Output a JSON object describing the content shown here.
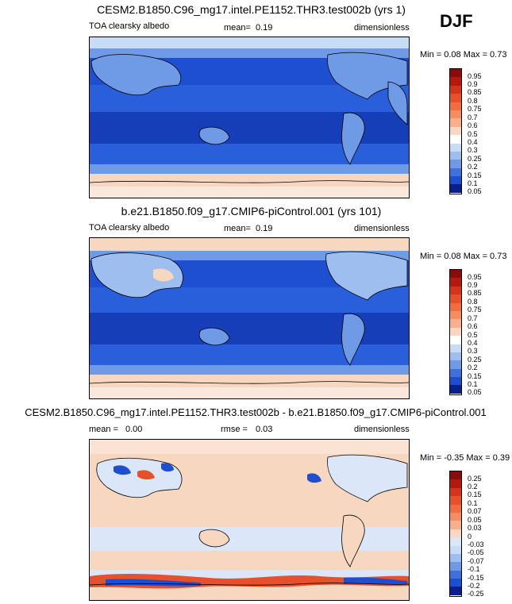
{
  "season": "DJF",
  "colors": {
    "blue_dark": "#0a1e8c",
    "blue_mid": "#1f4fd1",
    "blue_light": "#6f9ae6",
    "pale_blue": "#c9dcf5",
    "pale_orange": "#f7d7c0",
    "orange": "#ef8a5a",
    "red_dark": "#8b0a0a"
  },
  "panels": [
    {
      "title": "CESM2.B1850.C96_mg17.intel.PE1152.THR3.test002b (yrs 1)",
      "variable": "TOA clearsky albedo",
      "stat_label": "mean=",
      "stat_value": "0.19",
      "units": "dimensionless",
      "minmax": "Min =  0.08 Max =  0.73",
      "colorbar_levels": [
        "0.95",
        "0.9",
        "0.85",
        "0.8",
        "0.75",
        "0.7",
        "0.6",
        "0.5",
        "0.4",
        "0.3",
        "0.25",
        "0.2",
        "0.15",
        "0.1",
        "0.05"
      ]
    },
    {
      "title": "b.e21.B1850.f09_g17.CMIP6-piControl.001 (yrs 101)",
      "variable": "TOA clearsky albedo",
      "stat_label": "mean=",
      "stat_value": "0.19",
      "units": "dimensionless",
      "minmax": "Min =  0.08 Max =  0.73",
      "colorbar_levels": [
        "0.95",
        "0.9",
        "0.85",
        "0.8",
        "0.75",
        "0.7",
        "0.6",
        "0.5",
        "0.4",
        "0.3",
        "0.25",
        "0.2",
        "0.15",
        "0.1",
        "0.05"
      ]
    },
    {
      "title": "CESM2.B1850.C96_mg17.intel.PE1152.THR3.test002b - b.e21.B1850.f09_g17.CMIP6-piControl.001",
      "stat_label": "mean =",
      "stat_value": "0.00",
      "stat2_label": "rmse =",
      "stat2_value": "0.03",
      "units": "dimensionless",
      "minmax": "Min = -0.35 Max =  0.39",
      "colorbar_levels": [
        "0.25",
        "0.2",
        "0.15",
        "0.1",
        "0.07",
        "0.05",
        "0.03",
        "0",
        "-0.03",
        "-0.05",
        "-0.07",
        "-0.1",
        "-0.15",
        "-0.2",
        "-0.25"
      ]
    }
  ]
}
